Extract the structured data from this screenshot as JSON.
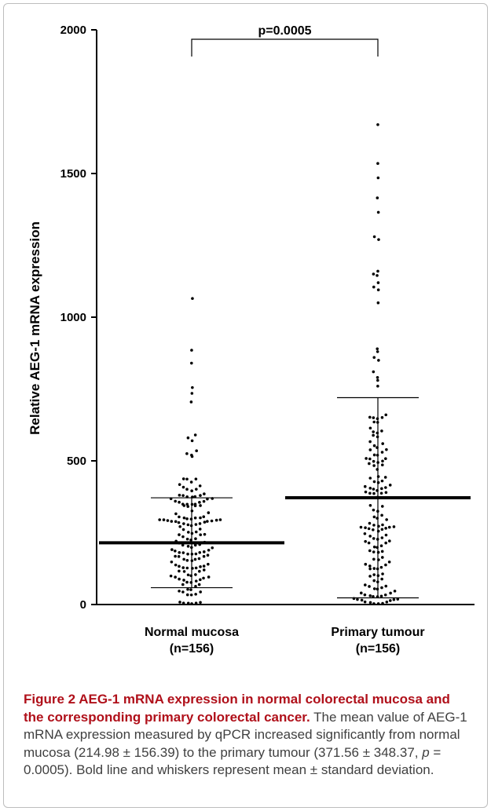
{
  "chart_data": {
    "type": "scatter",
    "ylabel": "Relative AEG-1 mRNA expression",
    "ylim": [
      0,
      2000
    ],
    "yticks": [
      0,
      500,
      1000,
      1500,
      2000
    ],
    "groups": [
      {
        "label": "Normal mucosa",
        "n_label": "(n=156)",
        "n": 156,
        "mean": 214.98,
        "sd": 156.39,
        "outliers": [
          1065,
          885,
          840,
          755,
          735,
          705,
          590,
          580,
          570,
          535,
          525,
          520,
          515
        ]
      },
      {
        "label": "Primary tumour",
        "n_label": "(n=156)",
        "n": 156,
        "mean": 371.56,
        "sd": 348.37,
        "outliers": [
          1670,
          1535,
          1485,
          1415,
          1365,
          1280,
          1270,
          1160,
          1150,
          1145,
          1120,
          1105,
          1095,
          1050,
          890,
          880,
          860,
          850,
          810,
          790,
          780,
          760
        ]
      }
    ],
    "annotation": {
      "text": "p=0.0005",
      "between": [
        0,
        1
      ],
      "y": 2000
    },
    "colors": {
      "points": "#000000",
      "axis": "#000000",
      "caption_head": "#b0101a",
      "caption_text": "#404040"
    }
  },
  "caption": {
    "head": "Figure 2 AEG-1 mRNA expression in normal colorectal mucosa and the corresponding primary colorectal cancer.",
    "body_1": " The mean value of AEG-1 mRNA expression measured by qPCR increased significantly from normal mucosa (214.98 ± 156.39) to the primary tumour (371.56 ± 348.37, ",
    "p_symbol": "p",
    "body_2": " = 0.0005). Bold line and whiskers represent mean ± standard deviation."
  }
}
